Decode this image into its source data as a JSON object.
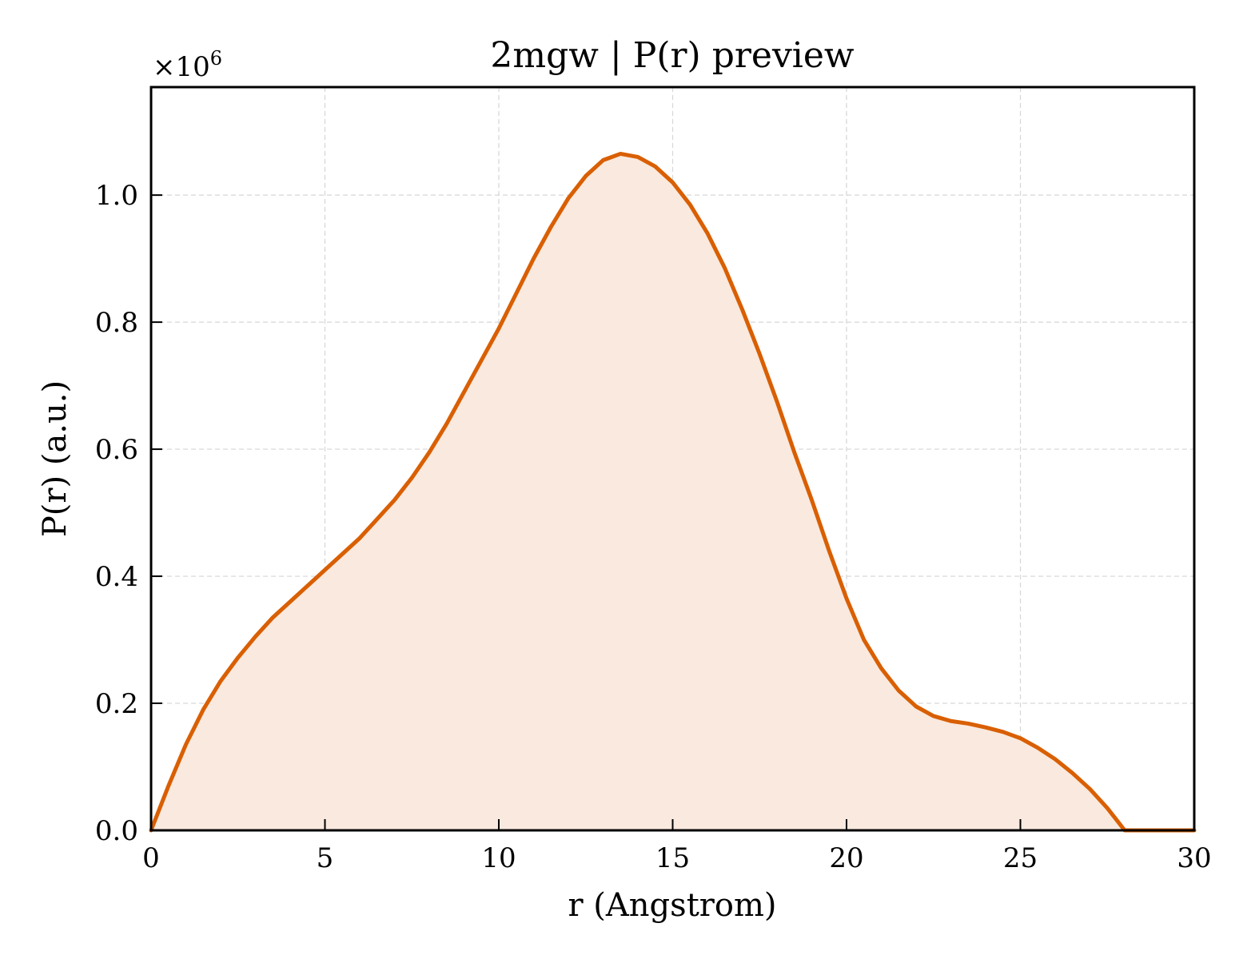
{
  "chart_data": {
    "type": "area",
    "title": "2mgw | P(r) preview",
    "xlabel": "r (Angstrom)",
    "ylabel": "P(r) (a.u.)",
    "scale_note": "×10",
    "scale_exponent": "6",
    "xlim": [
      0,
      30
    ],
    "ylim": [
      0,
      1.17
    ],
    "xticks": [
      0,
      5,
      10,
      15,
      20,
      25,
      30
    ],
    "xtick_labels": [
      "0",
      "5",
      "10",
      "15",
      "20",
      "25",
      "30"
    ],
    "yticks": [
      0.0,
      0.2,
      0.4,
      0.6,
      0.8,
      1.0
    ],
    "ytick_labels": [
      "0.0",
      "0.2",
      "0.4",
      "0.6",
      "0.8",
      "1.0"
    ],
    "grid": true,
    "colors": {
      "line": "#d95f02",
      "fill": "#f9e9df",
      "grid": "#d6d6d6"
    },
    "series": [
      {
        "x": [
          0,
          0.5,
          1,
          1.5,
          2,
          2.5,
          3,
          3.5,
          4,
          4.5,
          5,
          5.5,
          6,
          6.5,
          7,
          7.5,
          8,
          8.5,
          9,
          9.5,
          10,
          10.5,
          11,
          11.5,
          12,
          12.5,
          13,
          13.5,
          14,
          14.5,
          15,
          15.5,
          16,
          16.5,
          17,
          17.5,
          18,
          18.5,
          19,
          19.5,
          20,
          20.5,
          21,
          21.5,
          22,
          22.5,
          23,
          23.5,
          24,
          24.5,
          25,
          25.5,
          26,
          26.5,
          27,
          27.5,
          28,
          28.5,
          29,
          29.5,
          30
        ],
        "y": [
          0.0,
          0.07,
          0.135,
          0.19,
          0.235,
          0.272,
          0.305,
          0.335,
          0.36,
          0.385,
          0.41,
          0.435,
          0.46,
          0.49,
          0.52,
          0.555,
          0.595,
          0.64,
          0.69,
          0.74,
          0.79,
          0.845,
          0.9,
          0.95,
          0.995,
          1.03,
          1.055,
          1.065,
          1.06,
          1.045,
          1.02,
          0.985,
          0.94,
          0.885,
          0.82,
          0.75,
          0.675,
          0.595,
          0.52,
          0.44,
          0.365,
          0.3,
          0.255,
          0.22,
          0.195,
          0.18,
          0.172,
          0.168,
          0.162,
          0.155,
          0.145,
          0.13,
          0.112,
          0.09,
          0.065,
          0.035,
          0.0,
          0.0,
          0.0,
          0.0,
          0.0
        ]
      }
    ]
  }
}
